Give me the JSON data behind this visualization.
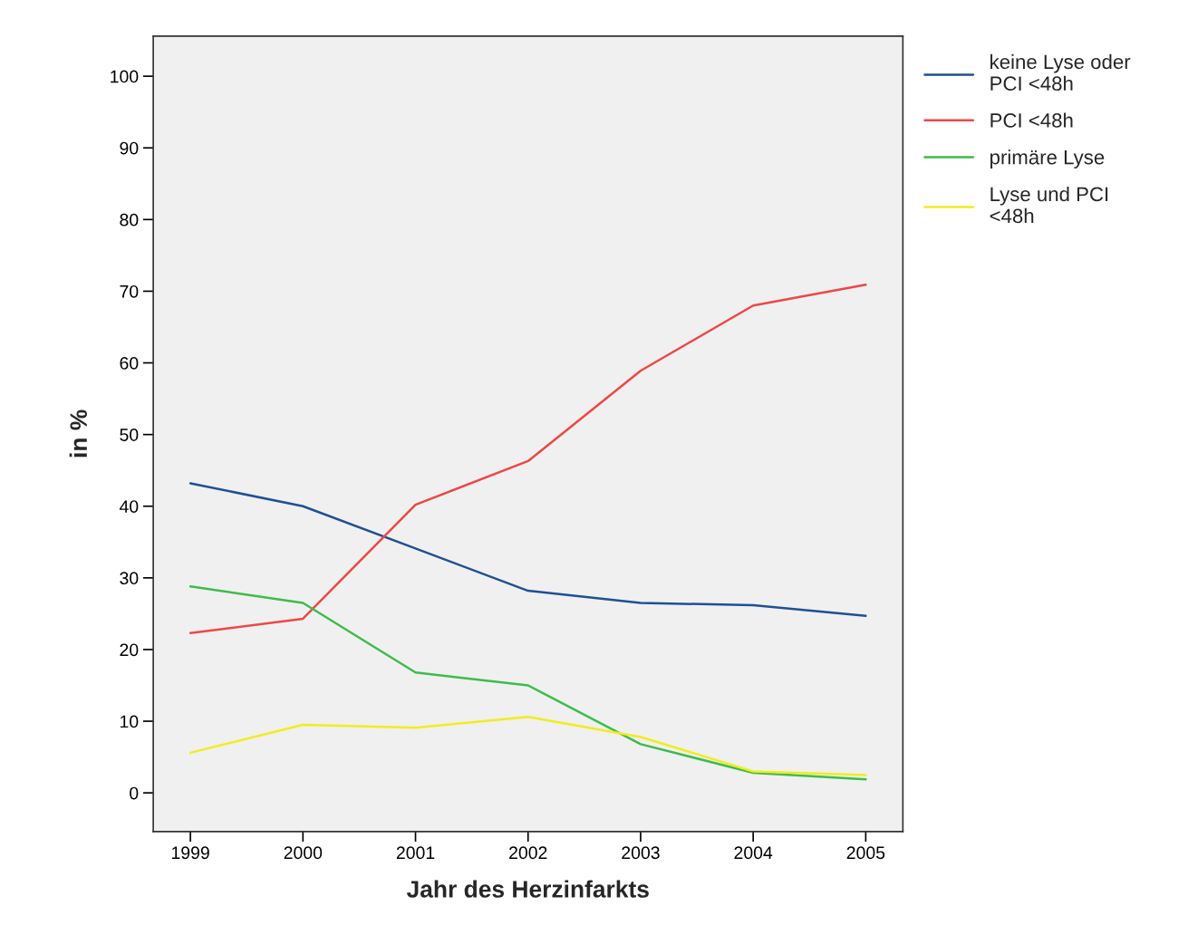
{
  "chart_data": {
    "type": "line",
    "xlabel": "Jahr des Herzinfarkts",
    "ylabel": "in %",
    "x": [
      1999,
      2000,
      2001,
      2002,
      2003,
      2004,
      2005
    ],
    "series": [
      {
        "name": "keine Lyse oder PCI <48h",
        "color": "#1f4f96",
        "values": [
          43.2,
          40.0,
          34.1,
          28.2,
          26.5,
          26.2,
          24.7
        ]
      },
      {
        "name": "PCI <48h",
        "color": "#f04646",
        "values": [
          22.3,
          24.3,
          40.2,
          46.3,
          58.9,
          68.0,
          70.9
        ]
      },
      {
        "name": "primäre Lyse",
        "color": "#3cbc4c",
        "values": [
          28.8,
          26.5,
          16.8,
          15.0,
          6.8,
          2.8,
          1.9
        ]
      },
      {
        "name": "Lyse und PCI <48h",
        "color": "#f2ec1e",
        "values": [
          5.6,
          9.5,
          9.1,
          10.6,
          7.8,
          3.0,
          2.5
        ]
      }
    ],
    "xlim": [
      1998.67,
      2005.33
    ],
    "xticks": [
      1999,
      2000,
      2001,
      2002,
      2003,
      2004,
      2005
    ],
    "ylim": [
      -5.4,
      105.6
    ],
    "yticks": [
      0,
      10,
      20,
      30,
      40,
      50,
      60,
      70,
      80,
      90,
      100
    ],
    "grid": false,
    "legend": "top right",
    "marker": "none",
    "line_style": "solid"
  }
}
